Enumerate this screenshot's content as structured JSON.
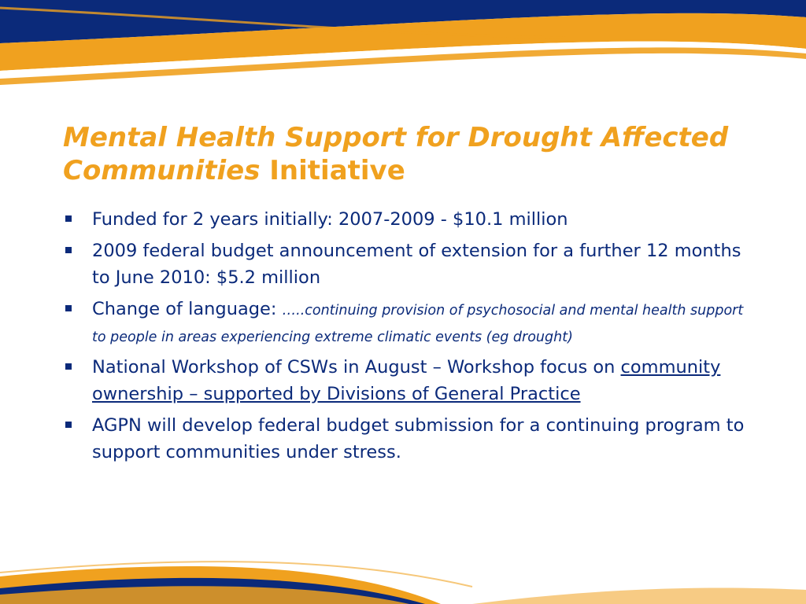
{
  "title": {
    "italic": "Mental Health Support for Drought Affected Communities",
    "rest": "Initiative"
  },
  "bullets": [
    {
      "text": "Funded for 2 years initially:  2007-2009 - $10.1 million"
    },
    {
      "text": "2009 federal budget announcement of extension for a further 12 months to June 2010: $5.2 million"
    },
    {
      "lead": "Change of language:  ",
      "italic": "…..continuing provision of psychosocial and mental health support to people in areas experiencing extreme climatic events (eg drought)"
    },
    {
      "lead": "National Workshop of CSWs in August – Workshop focus on ",
      "underlined": "community ownership – supported by Divisions of General Practice"
    },
    {
      "text": "AGPN will develop federal budget submission for a continuing program to support communities under stress."
    }
  ],
  "colors": {
    "navy": "#0b2a7a",
    "orange": "#f0a11f",
    "background": "#ffffff"
  }
}
